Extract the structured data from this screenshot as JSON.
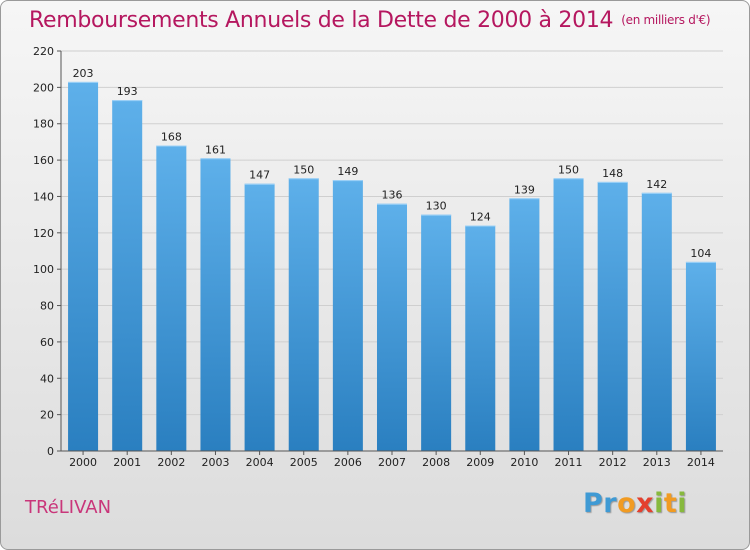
{
  "header": {
    "title": "Remboursements Annuels de la Dette de 2000 à 2014",
    "unit": "(en milliers d'€)"
  },
  "footer": {
    "place": "TRéLIVAN",
    "logo": {
      "p1": "Pr",
      "p2": "o",
      "p3": "x",
      "p4": "i",
      "p5": "t",
      "p6": "i"
    }
  },
  "colors": {
    "bar_light": "#5eb0ea",
    "bar_dark": "#2a7fc0",
    "title": "#b5175f",
    "grid": "#cfcfcf"
  },
  "chart_data": {
    "type": "bar",
    "title": "Remboursements Annuels de la Dette de 2000 à 2014",
    "xlabel": "",
    "ylabel": "",
    "ylim": [
      0,
      220
    ],
    "yticks": [
      0,
      20,
      40,
      60,
      80,
      100,
      120,
      140,
      160,
      180,
      200,
      220
    ],
    "grid": true,
    "categories": [
      "2000",
      "2001",
      "2002",
      "2003",
      "2004",
      "2005",
      "2006",
      "2007",
      "2008",
      "2009",
      "2010",
      "2011",
      "2012",
      "2013",
      "2014"
    ],
    "values": [
      203,
      193,
      168,
      161,
      147,
      150,
      149,
      136,
      130,
      124,
      139,
      150,
      148,
      142,
      104
    ]
  }
}
